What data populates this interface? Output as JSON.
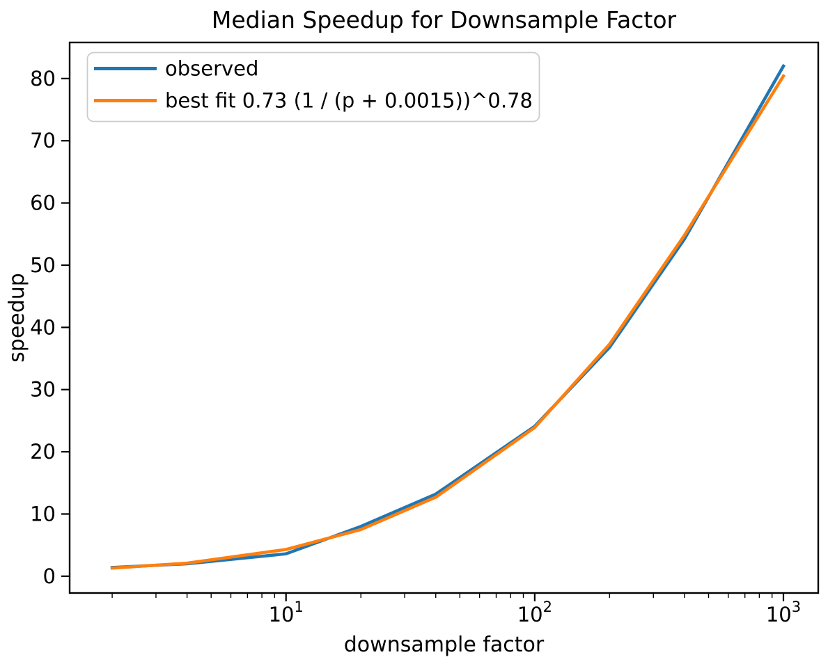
{
  "chart_data": {
    "type": "line",
    "title": "Median Speedup for Downsample Factor",
    "xlabel": "downsample factor",
    "ylabel": "speedup",
    "x_scale": "log",
    "grid": false,
    "legend_position": "upper left",
    "background_color": "#ffffff",
    "axis_color": "#000000",
    "legend_border_color": "#cccccc",
    "x": [
      2,
      4,
      10,
      20,
      40,
      100,
      200,
      400,
      1000
    ],
    "series": [
      {
        "name": "observed",
        "color": "#1f77b4",
        "values": [
          1.4,
          2.0,
          3.6,
          8.0,
          13.2,
          24.1,
          36.8,
          54.2,
          82.0
        ]
      },
      {
        "name": "best fit 0.73 (1 / (p + 0.0015))^0.78",
        "color": "#ff7f0e",
        "values": [
          1.3,
          2.1,
          4.3,
          7.5,
          12.7,
          23.9,
          37.3,
          54.8,
          80.4
        ]
      }
    ],
    "xlim_log10": [
      0.13,
      3.14
    ],
    "ylim": [
      -2.7,
      85.8
    ],
    "y_ticks": [
      0,
      10,
      20,
      30,
      40,
      50,
      60,
      70,
      80
    ],
    "x_major_ticks": [
      {
        "value": 10,
        "base": "10",
        "exponent": "1"
      },
      {
        "value": 100,
        "base": "10",
        "exponent": "2"
      },
      {
        "value": 1000,
        "base": "10",
        "exponent": "3"
      }
    ]
  }
}
